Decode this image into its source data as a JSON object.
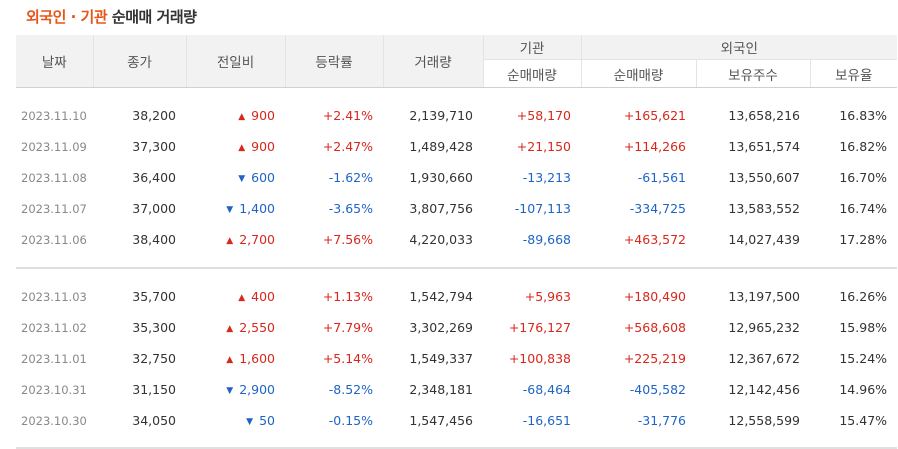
{
  "title": {
    "accent": "외국인 · 기관",
    "rest": "순매매 거래량"
  },
  "headers": {
    "date": "날짜",
    "close": "종가",
    "change": "전일비",
    "rate": "등락률",
    "volume": "거래량",
    "inst": "기관",
    "foreign": "외국인",
    "inst_net": "순매매량",
    "foreign_net": "순매매량",
    "holding": "보유주수",
    "ratio": "보유율"
  },
  "colors": {
    "accent": "#e6551a",
    "up": "#d8271c",
    "down": "#1f64c5"
  },
  "groups": [
    [
      {
        "date": "2023.11.10",
        "close": "38,200",
        "dir": "up",
        "change": "900",
        "rate": "+2.41%",
        "volume": "2,139,710",
        "inst": "+58,170",
        "inst_dir": "up",
        "foreign": "+165,621",
        "foreign_dir": "up",
        "holding": "13,658,216",
        "ratio": "16.83%"
      },
      {
        "date": "2023.11.09",
        "close": "37,300",
        "dir": "up",
        "change": "900",
        "rate": "+2.47%",
        "volume": "1,489,428",
        "inst": "+21,150",
        "inst_dir": "up",
        "foreign": "+114,266",
        "foreign_dir": "up",
        "holding": "13,651,574",
        "ratio": "16.82%"
      },
      {
        "date": "2023.11.08",
        "close": "36,400",
        "dir": "down",
        "change": "600",
        "rate": "-1.62%",
        "volume": "1,930,660",
        "inst": "-13,213",
        "inst_dir": "down",
        "foreign": "-61,561",
        "foreign_dir": "down",
        "holding": "13,550,607",
        "ratio": "16.70%"
      },
      {
        "date": "2023.11.07",
        "close": "37,000",
        "dir": "down",
        "change": "1,400",
        "rate": "-3.65%",
        "volume": "3,807,756",
        "inst": "-107,113",
        "inst_dir": "down",
        "foreign": "-334,725",
        "foreign_dir": "down",
        "holding": "13,583,552",
        "ratio": "16.74%"
      },
      {
        "date": "2023.11.06",
        "close": "38,400",
        "dir": "up",
        "change": "2,700",
        "rate": "+7.56%",
        "volume": "4,220,033",
        "inst": "-89,668",
        "inst_dir": "down",
        "foreign": "+463,572",
        "foreign_dir": "up",
        "holding": "14,027,439",
        "ratio": "17.28%"
      }
    ],
    [
      {
        "date": "2023.11.03",
        "close": "35,700",
        "dir": "up",
        "change": "400",
        "rate": "+1.13%",
        "volume": "1,542,794",
        "inst": "+5,963",
        "inst_dir": "up",
        "foreign": "+180,490",
        "foreign_dir": "up",
        "holding": "13,197,500",
        "ratio": "16.26%"
      },
      {
        "date": "2023.11.02",
        "close": "35,300",
        "dir": "up",
        "change": "2,550",
        "rate": "+7.79%",
        "volume": "3,302,269",
        "inst": "+176,127",
        "inst_dir": "up",
        "foreign": "+568,608",
        "foreign_dir": "up",
        "holding": "12,965,232",
        "ratio": "15.98%"
      },
      {
        "date": "2023.11.01",
        "close": "32,750",
        "dir": "up",
        "change": "1,600",
        "rate": "+5.14%",
        "volume": "1,549,337",
        "inst": "+100,838",
        "inst_dir": "up",
        "foreign": "+225,219",
        "foreign_dir": "up",
        "holding": "12,367,672",
        "ratio": "15.24%"
      },
      {
        "date": "2023.10.31",
        "close": "31,150",
        "dir": "down",
        "change": "2,900",
        "rate": "-8.52%",
        "volume": "2,348,181",
        "inst": "-68,464",
        "inst_dir": "down",
        "foreign": "-405,582",
        "foreign_dir": "down",
        "holding": "12,142,456",
        "ratio": "14.96%"
      },
      {
        "date": "2023.10.30",
        "close": "34,050",
        "dir": "down",
        "change": "50",
        "rate": "-0.15%",
        "volume": "1,547,456",
        "inst": "-16,651",
        "inst_dir": "down",
        "foreign": "-31,776",
        "foreign_dir": "down",
        "holding": "12,558,599",
        "ratio": "15.47%"
      }
    ]
  ]
}
